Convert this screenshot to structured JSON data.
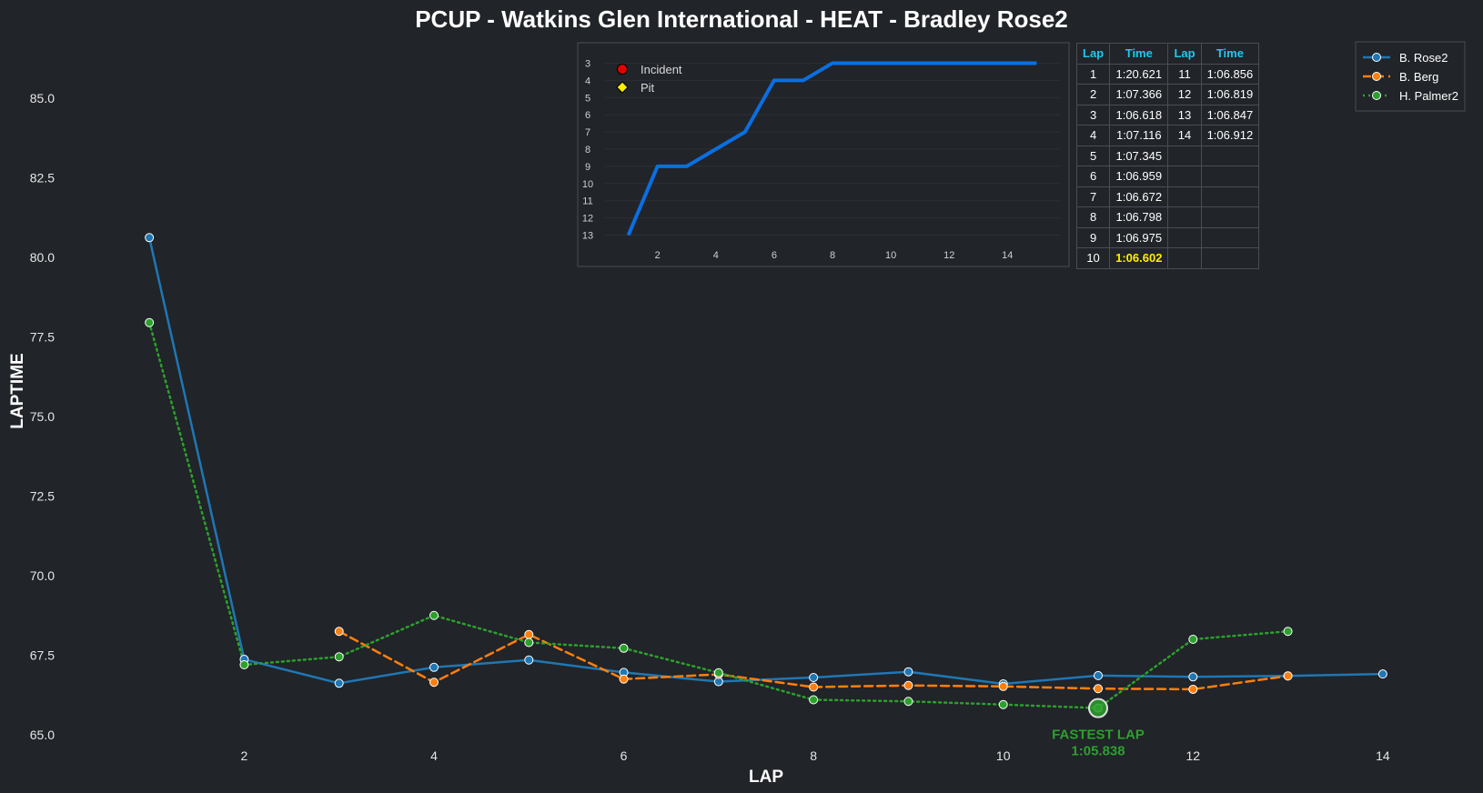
{
  "title": "PCUP - Watkins Glen International - HEAT - Bradley Rose2",
  "colors": {
    "background": "#212429",
    "rose": "#1f77b4",
    "berg": "#ff7f0e",
    "palmer": "#2ca02c",
    "inset_line": "#0a6fe0",
    "table_header": "#1ec8f0",
    "best_lap": "#ffee00"
  },
  "chart_data": [
    {
      "type": "line",
      "xlabel": "LAP",
      "ylabel": "LAPTIME",
      "xlim": [
        0.5,
        14.5
      ],
      "ylim": [
        64.8,
        87.0
      ],
      "x_ticks": [
        2,
        4,
        6,
        8,
        10,
        12,
        14
      ],
      "y_ticks": [
        65.0,
        67.5,
        70.0,
        72.5,
        75.0,
        77.5,
        80.0,
        82.5,
        85.0
      ],
      "grid": false,
      "legend_position": "top-right",
      "series": [
        {
          "name": "B. Rose2",
          "style": "solid",
          "color": "#1f77b4",
          "x": [
            1,
            2,
            3,
            4,
            5,
            6,
            7,
            8,
            9,
            10,
            11,
            12,
            13,
            14
          ],
          "y": [
            80.62,
            67.37,
            66.62,
            67.12,
            67.35,
            66.96,
            66.67,
            66.8,
            66.98,
            66.6,
            66.86,
            66.82,
            66.85,
            66.91
          ]
        },
        {
          "name": "B. Berg",
          "style": "dashed",
          "color": "#ff7f0e",
          "x": [
            3,
            4,
            5,
            6,
            7,
            8,
            9,
            10,
            11,
            12,
            13
          ],
          "y": [
            68.25,
            66.65,
            68.15,
            66.75,
            66.9,
            66.5,
            66.55,
            66.52,
            66.45,
            66.43,
            66.85
          ]
        },
        {
          "name": "H. Palmer2",
          "style": "dotted",
          "color": "#2ca02c",
          "x": [
            1,
            2,
            3,
            4,
            5,
            6,
            7,
            8,
            9,
            10,
            11,
            12,
            13
          ],
          "y": [
            77.95,
            67.2,
            67.45,
            68.75,
            67.9,
            67.72,
            66.95,
            66.1,
            66.05,
            65.95,
            65.84,
            68.0,
            68.25
          ]
        }
      ],
      "annotation": {
        "label": "FASTEST LAP",
        "value": "1:05.838",
        "x": 11,
        "y": 65.838
      }
    },
    {
      "type": "line",
      "x_ticks": [
        2,
        4,
        6,
        8,
        10,
        12,
        14
      ],
      "y_ticks": [
        3,
        4,
        5,
        6,
        7,
        8,
        9,
        10,
        11,
        12,
        13
      ],
      "ylim": [
        13.5,
        2.5
      ],
      "xlim": [
        0.2,
        15.8
      ],
      "y_inverted": true,
      "legend": [
        {
          "label": "Incident",
          "color": "#e00000",
          "marker": "circle"
        },
        {
          "label": "Pit",
          "color": "#ffee00",
          "marker": "diamond"
        }
      ],
      "series": [
        {
          "name": "",
          "x": [
            1,
            2,
            3,
            4,
            5,
            6,
            7,
            8,
            9,
            10,
            11,
            12,
            13,
            14,
            15
          ],
          "y": [
            13,
            9,
            9,
            8,
            7,
            4,
            4,
            3,
            3,
            3,
            3,
            3,
            3,
            3,
            3
          ]
        }
      ]
    }
  ],
  "table": {
    "headers": [
      "Lap",
      "Time",
      "Lap",
      "Time"
    ],
    "rows": [
      [
        "1",
        "1:20.621",
        "11",
        "1:06.856"
      ],
      [
        "2",
        "1:07.366",
        "12",
        "1:06.819"
      ],
      [
        "3",
        "1:06.618",
        "13",
        "1:06.847"
      ],
      [
        "4",
        "1:07.116",
        "14",
        "1:06.912"
      ],
      [
        "5",
        "1:07.345",
        "",
        ""
      ],
      [
        "6",
        "1:06.959",
        "",
        ""
      ],
      [
        "7",
        "1:06.672",
        "",
        ""
      ],
      [
        "8",
        "1:06.798",
        "",
        ""
      ],
      [
        "9",
        "1:06.975",
        "",
        ""
      ],
      [
        "10",
        "1:06.602",
        "",
        ""
      ]
    ],
    "best_row": 9
  }
}
